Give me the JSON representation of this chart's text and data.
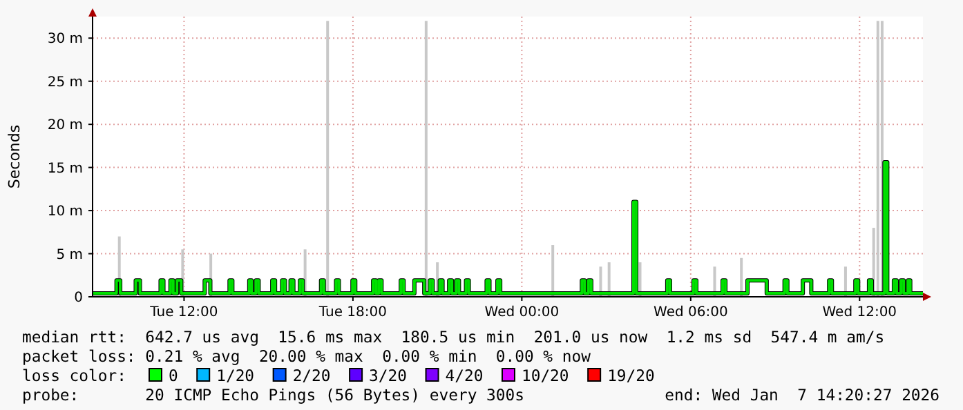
{
  "chart_data": {
    "type": "step",
    "ylabel": "Seconds",
    "xlim": [
      "2026-01-06T08:45",
      "2026-01-07T14:15"
    ],
    "ylim": [
      0,
      32.5
    ],
    "xticks": [
      {
        "value": "2026-01-06T12:00",
        "label": "Tue 12:00"
      },
      {
        "value": "2026-01-06T18:00",
        "label": "Tue 18:00"
      },
      {
        "value": "2026-01-07T00:00",
        "label": "Wed 00:00"
      },
      {
        "value": "2026-01-07T06:00",
        "label": "Wed 06:00"
      },
      {
        "value": "2026-01-07T12:00",
        "label": "Wed 12:00"
      }
    ],
    "yticks": [
      0,
      {
        "value": 5,
        "label": "5 m"
      },
      {
        "value": 10,
        "label": "10 m"
      },
      {
        "value": 15,
        "label": "15 m"
      },
      {
        "value": 20,
        "label": "20 m"
      },
      {
        "value": 25,
        "label": "25 m"
      },
      {
        "value": 30,
        "label": "30 m"
      }
    ],
    "grid": true,
    "series": [
      {
        "type": "bar",
        "color": "#c8c8c8",
        "x": [
          "2026-01-06T09:42",
          "2026-01-06T11:57",
          "2026-01-06T12:57",
          "2026-01-06T16:18",
          "2026-01-06T17:06",
          "2026-01-06T20:36",
          "2026-01-06T21:00",
          "2026-01-07T01:06",
          "2026-01-07T02:48",
          "2026-01-07T03:06",
          "2026-01-07T04:12",
          "2026-01-07T06:51",
          "2026-01-07T07:48",
          "2026-01-07T11:30",
          "2026-01-07T12:30",
          "2026-01-07T12:39",
          "2026-01-07T12:48"
        ],
        "values": [
          7,
          5.5,
          5,
          5.5,
          32,
          32,
          4,
          6,
          3.5,
          4,
          4,
          3.5,
          4.5,
          3.5,
          8,
          32,
          32
        ]
      },
      {
        "color": "#00e000",
        "x": [
          "2026-01-06T08:45",
          "2026-01-06T09:36",
          "2026-01-06T09:44",
          "2026-01-06T10:17",
          "2026-01-06T10:26",
          "2026-01-06T11:10",
          "2026-01-06T11:16",
          "2026-01-06T11:31",
          "2026-01-06T11:37",
          "2026-01-06T11:45",
          "2026-01-06T11:54",
          "2026-01-06T12:44",
          "2026-01-06T12:56",
          "2026-01-06T13:37",
          "2026-01-06T13:43",
          "2026-01-06T14:19",
          "2026-01-06T14:24",
          "2026-01-06T14:33",
          "2026-01-06T14:39",
          "2026-01-06T15:08",
          "2026-01-06T15:14",
          "2026-01-06T15:29",
          "2026-01-06T15:35",
          "2026-01-06T15:47",
          "2026-01-06T15:53",
          "2026-01-06T16:07",
          "2026-01-06T16:13",
          "2026-01-06T16:52",
          "2026-01-06T16:58",
          "2026-01-06T17:24",
          "2026-01-06T17:30",
          "2026-01-06T17:59",
          "2026-01-06T18:05",
          "2026-01-06T18:43",
          "2026-01-06T18:49",
          "2026-01-06T18:55",
          "2026-01-06T19:01",
          "2026-01-06T19:42",
          "2026-01-06T19:48",
          "2026-01-06T20:11",
          "2026-01-06T20:32",
          "2026-01-06T20:44",
          "2026-01-06T20:50",
          "2026-01-06T21:05",
          "2026-01-06T21:11",
          "2026-01-06T21:25",
          "2026-01-06T21:31",
          "2026-01-06T21:40",
          "2026-01-06T21:46",
          "2026-01-06T22:01",
          "2026-01-06T22:07",
          "2026-01-06T22:45",
          "2026-01-06T22:51",
          "2026-01-06T23:08",
          "2026-01-06T23:14",
          "2026-01-07T02:08",
          "2026-01-07T02:14",
          "2026-01-07T02:22",
          "2026-01-07T02:28",
          "2026-01-07T03:58",
          "2026-01-07T04:04",
          "2026-01-07T05:10",
          "2026-01-07T05:16",
          "2026-01-07T06:06",
          "2026-01-07T06:12",
          "2026-01-07T07:08",
          "2026-01-07T07:14",
          "2026-01-07T08:01",
          "2026-01-07T08:42",
          "2026-01-07T09:20",
          "2026-01-07T09:26",
          "2026-01-07T09:59",
          "2026-01-07T10:17",
          "2026-01-07T10:55",
          "2026-01-07T11:01",
          "2026-01-07T11:51",
          "2026-01-07T11:57",
          "2026-01-07T12:20",
          "2026-01-07T12:26",
          "2026-01-07T12:53",
          "2026-01-07T12:59",
          "2026-01-07T13:13",
          "2026-01-07T13:19",
          "2026-01-07T13:28",
          "2026-01-07T13:34",
          "2026-01-07T13:43",
          "2026-01-07T13:48",
          "2026-01-07T14:15"
        ],
        "values": [
          0.4,
          1.9,
          0.4,
          1.9,
          0.4,
          1.9,
          0.4,
          1.9,
          0.4,
          1.9,
          0.4,
          1.9,
          0.4,
          1.9,
          0.4,
          1.9,
          0.4,
          1.9,
          0.4,
          1.9,
          0.4,
          1.9,
          0.4,
          1.9,
          0.4,
          1.9,
          0.4,
          1.9,
          0.4,
          1.9,
          0.4,
          1.9,
          0.4,
          1.9,
          0.4,
          1.9,
          0.4,
          1.9,
          0.4,
          1.9,
          0.4,
          1.9,
          0.4,
          1.9,
          0.4,
          1.9,
          0.4,
          1.9,
          0.4,
          1.9,
          0.4,
          1.9,
          0.4,
          1.9,
          0.4,
          1.9,
          0.4,
          1.9,
          0.4,
          11,
          0.4,
          1.9,
          0.4,
          1.9,
          0.4,
          1.9,
          0.4,
          1.9,
          0.4,
          1.9,
          0.4,
          1.9,
          0.4,
          1.9,
          0.4,
          1.9,
          0.4,
          1.9,
          0.4,
          15.6,
          0.4,
          1.9,
          0.4,
          1.9,
          0.4,
          1.9,
          0.4,
          0.4
        ]
      }
    ],
    "annotations": [
      "median rtt:  642.7 us avg  15.6 ms max  180.5 us min  201.0 us now  1.2 ms sd  547.4 m am/s",
      "packet loss: 0.21 % avg  20.00 % max  0.00 % min  0.00 % now",
      "loss color:",
      "0",
      "1/20",
      "2/20",
      "3/20",
      "4/20",
      "10/20",
      "19/20",
      "probe:       20 ICMP Echo Pings (56 Bytes) every 300s",
      "end: Wed Jan  7 14:20:27 2026"
    ]
  }
}
